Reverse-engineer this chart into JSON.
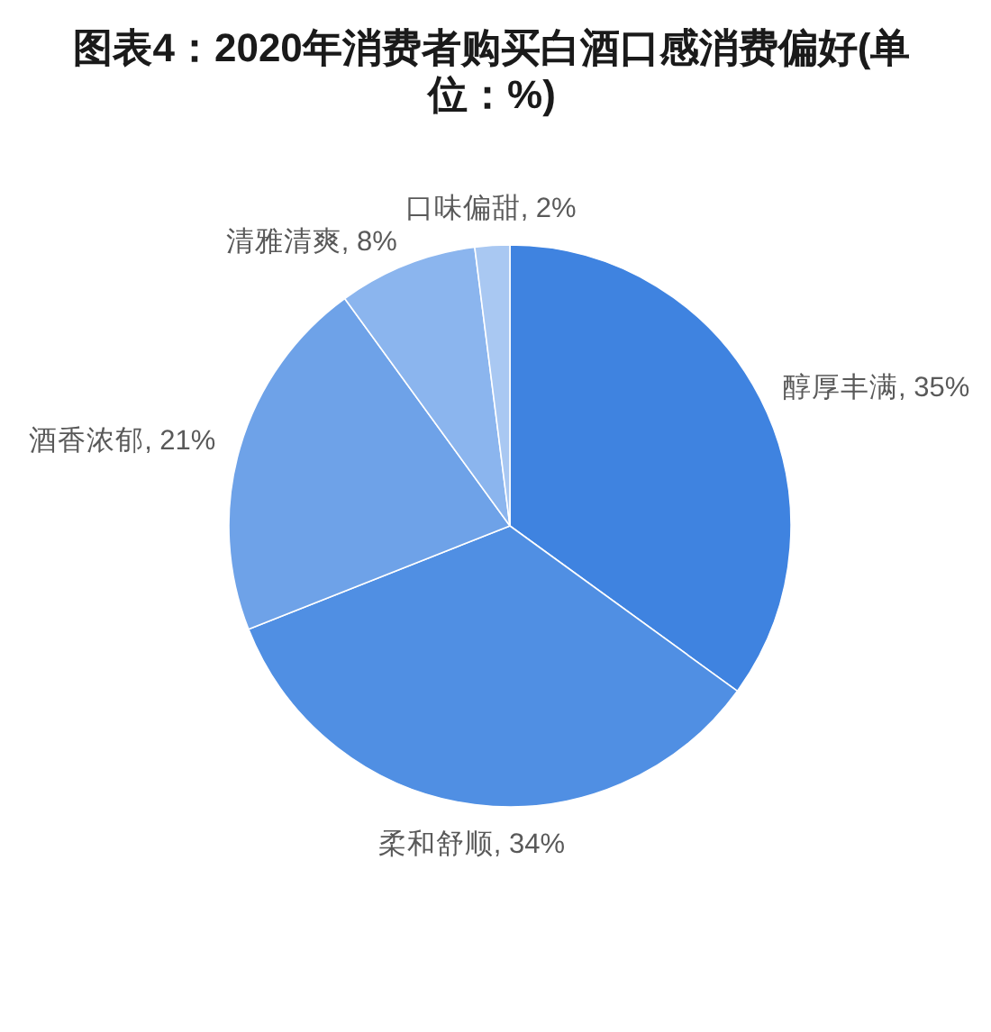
{
  "chart_data": {
    "type": "pie",
    "title": "图表4：2020年消费者购买白酒口感消费偏好(单位：%)",
    "categories": [
      "醇厚丰满",
      "柔和舒顺",
      "酒香浓郁",
      "清雅清爽",
      "口味偏甜"
    ],
    "values": [
      35,
      34,
      21,
      8,
      2
    ],
    "value_labels": [
      "35%",
      "34%",
      "21%",
      "8%",
      "2%"
    ],
    "colors": [
      "#3f83e0",
      "#508fe3",
      "#6ea2e8",
      "#8bb5ee",
      "#a9c8f2"
    ]
  }
}
